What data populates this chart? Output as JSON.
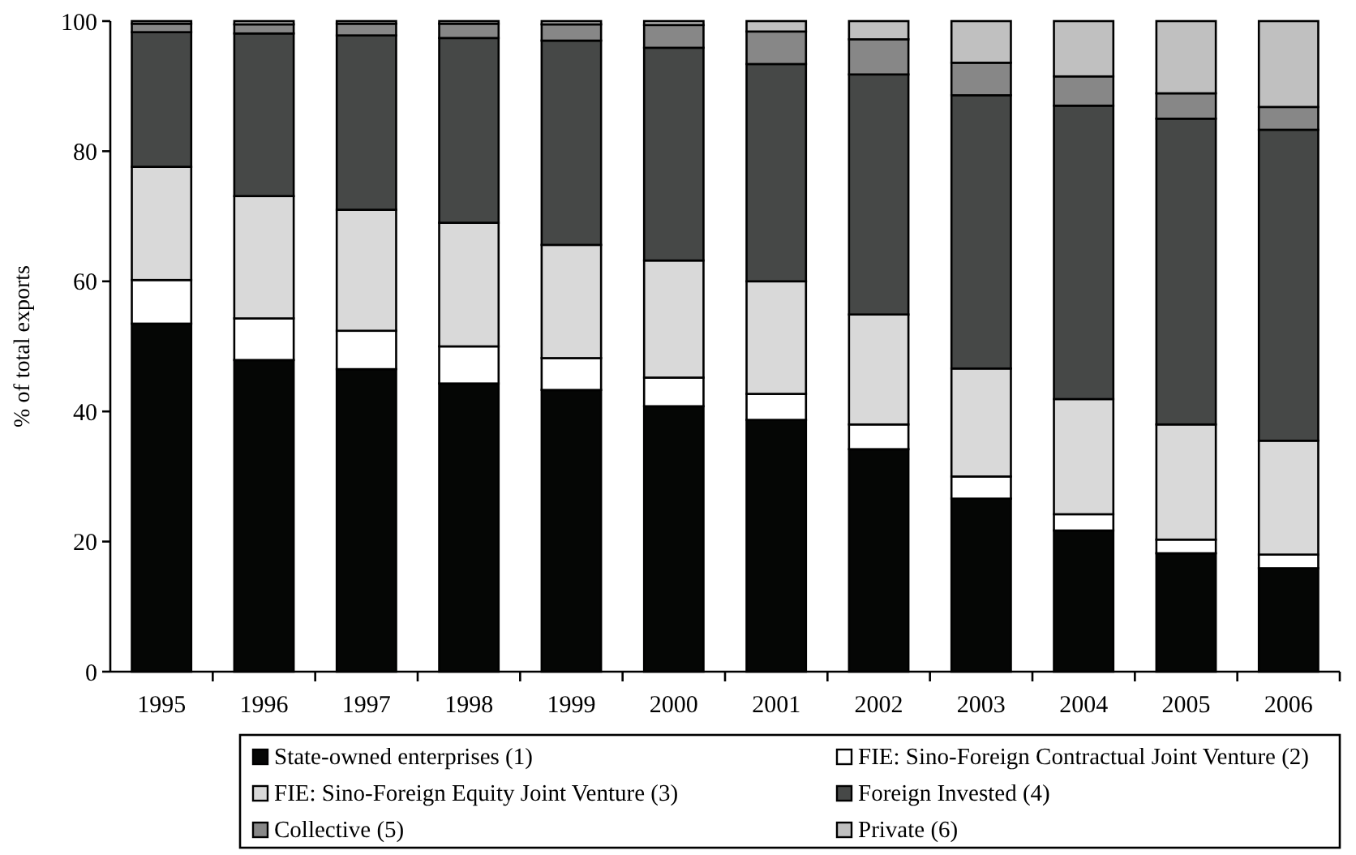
{
  "chart_data": {
    "type": "bar",
    "stacked": true,
    "ylabel": "% of total exports",
    "categories": [
      "1995",
      "1996",
      "1997",
      "1998",
      "1999",
      "2000",
      "2001",
      "2002",
      "2003",
      "2004",
      "2005",
      "2006"
    ],
    "ylim": [
      0,
      100
    ],
    "yticks": [
      0,
      20,
      40,
      60,
      80,
      100
    ],
    "grid": false,
    "legend": "bottom",
    "series": [
      {
        "name": "State-owned enterprises  (1)",
        "color": "#050605",
        "values": [
          53.5,
          47.9,
          46.5,
          44.3,
          43.3,
          40.8,
          38.7,
          34.2,
          26.6,
          21.7,
          18.2,
          15.9
        ]
      },
      {
        "name": "FIE: Sino-Foreign Contractual Joint Venture (2)",
        "color": "#ffffff",
        "values": [
          6.7,
          6.4,
          5.9,
          5.7,
          4.9,
          4.4,
          4.0,
          3.8,
          3.4,
          2.5,
          2.1,
          2.1
        ]
      },
      {
        "name": "FIE: Sino-Foreign Equity Joint Venture (3)",
        "color": "#d9d9d9",
        "values": [
          17.4,
          18.8,
          18.6,
          19.0,
          17.4,
          18.0,
          17.3,
          16.9,
          16.6,
          17.7,
          17.7,
          17.5
        ]
      },
      {
        "name": "Foreign Invested (4)",
        "color": "#464847",
        "values": [
          20.7,
          25.0,
          26.8,
          28.4,
          31.4,
          32.7,
          33.4,
          36.9,
          42.0,
          45.1,
          47.0,
          47.8
        ]
      },
      {
        "name": "Collective (5)",
        "color": "#878787",
        "values": [
          1.3,
          1.4,
          1.8,
          2.2,
          2.5,
          3.5,
          5.0,
          5.4,
          5.0,
          4.5,
          3.9,
          3.5
        ]
      },
      {
        "name": "Private (6)",
        "color": "#c0c0c0",
        "values": [
          0.4,
          0.5,
          0.4,
          0.4,
          0.5,
          0.6,
          1.6,
          2.8,
          6.4,
          8.5,
          11.1,
          13.2
        ]
      }
    ]
  }
}
